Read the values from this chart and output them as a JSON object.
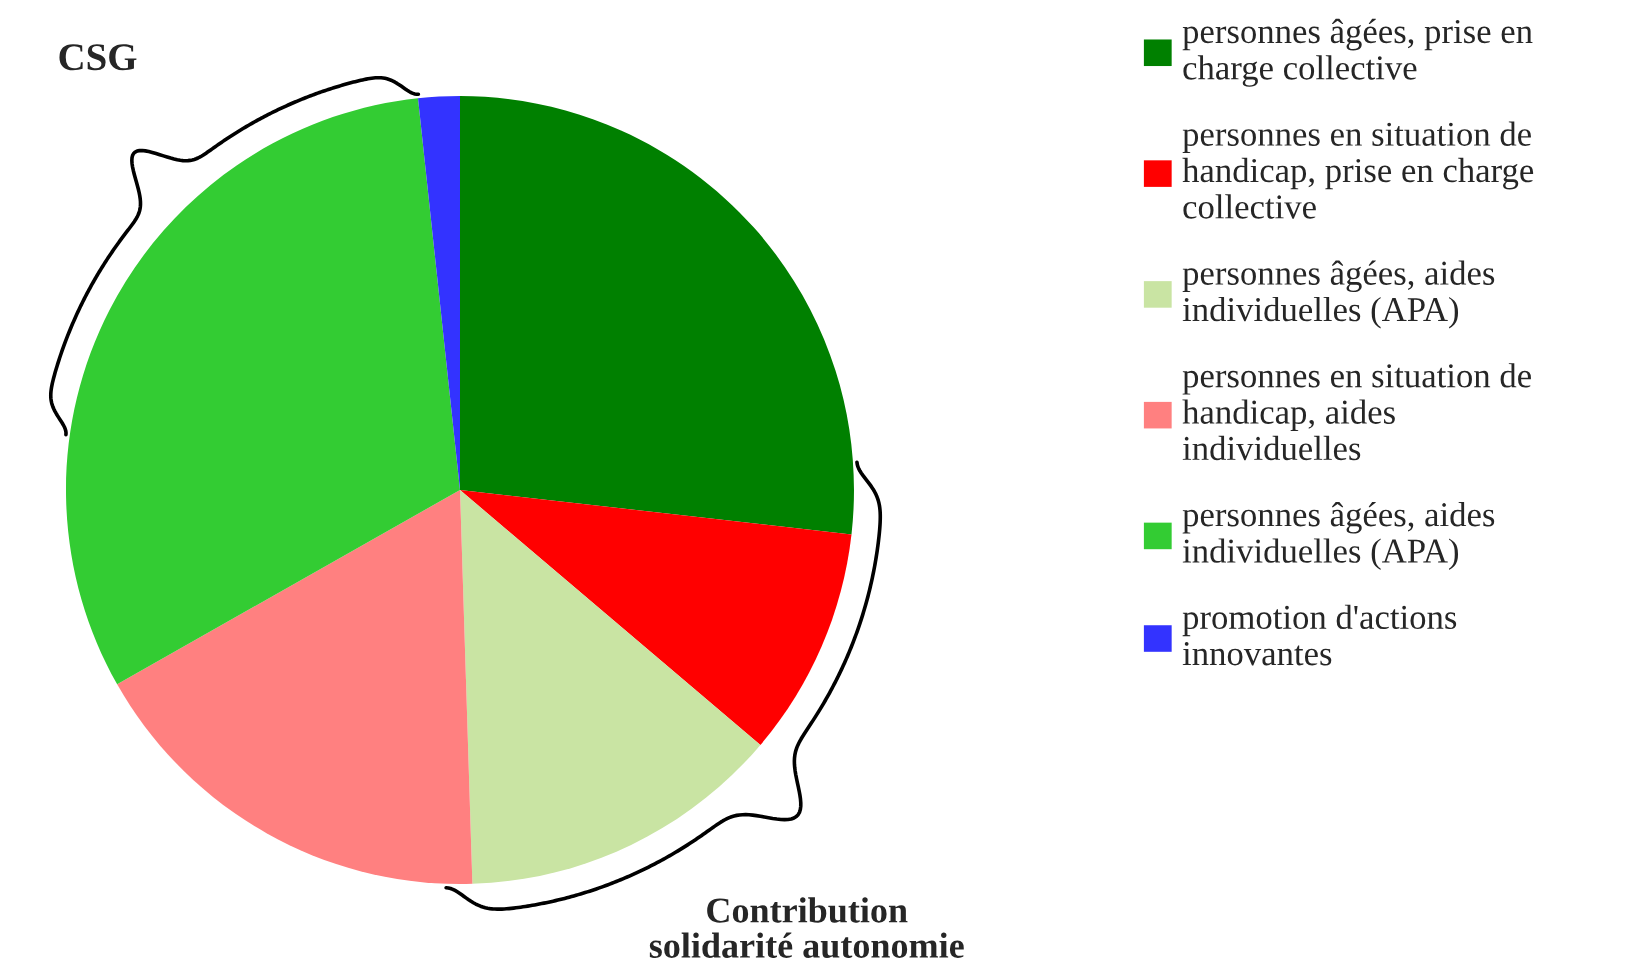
{
  "chart_data": {
    "type": "pie",
    "categories": [
      "personnes âgées, prise en\ncharge collective",
      "personnes en situation de\nhandicap, prise en charge\ncollective",
      "personnes âgées, aides\nindividuelles (APA)",
      "personnes en situation de\nhandicap, aides\nindividuelles",
      "personnes âgées, aides\nindividuelles (APA)",
      "promotion d'actions\ninnovantes"
    ],
    "values": [
      26.8,
      9.4,
      13.3,
      17.3,
      31.5,
      1.7
    ],
    "colors": [
      "#008000",
      "#ff0000",
      "#c9e4a3",
      "#ff8080",
      "#33cc33",
      "#3333ff"
    ],
    "annotations": [
      "CSG",
      "Contribution\nsolidarité autonomie"
    ],
    "legend": "right"
  }
}
